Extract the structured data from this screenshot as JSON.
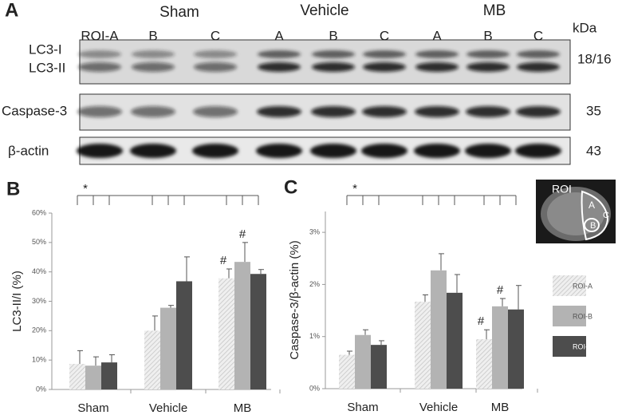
{
  "panel_labels": [
    "A",
    "B",
    "C"
  ],
  "blot": {
    "groups": [
      "Sham",
      "Vehicle",
      "MB"
    ],
    "lanes": [
      "ROI-A",
      "B",
      "C",
      "A",
      "B",
      "C",
      "A",
      "B",
      "C"
    ],
    "kda_header": "kDa",
    "rows": [
      {
        "labels": [
          "LC3-I",
          "LC3-II"
        ],
        "kda": "18/16"
      },
      {
        "labels": [
          "Caspase-3"
        ],
        "kda": "35"
      },
      {
        "labels": [
          "β-actin"
        ],
        "kda": "43"
      }
    ]
  },
  "roi_inset": {
    "label": "ROI",
    "regions": [
      "A",
      "B",
      "C"
    ]
  },
  "chart_data": [
    {
      "type": "bar",
      "y_label": "LC3-II/I (%)",
      "categories": [
        "Sham",
        "Vehicle",
        "MB"
      ],
      "series": [
        {
          "name": "ROI-A",
          "color": "#e8e8e8",
          "hatch": true,
          "values": [
            8.7,
            20,
            37.8
          ],
          "errors": [
            4.5,
            5,
            3.2
          ]
        },
        {
          "name": "ROI-B",
          "color": "#b3b3b3",
          "values": [
            8.1,
            27.8,
            43.4
          ],
          "errors": [
            3,
            0.8,
            6.6
          ]
        },
        {
          "name": "ROI-C",
          "color": "#4d4d4d",
          "values": [
            9.2,
            36.8,
            39.3
          ],
          "errors": [
            2.6,
            8.3,
            1.5
          ]
        }
      ],
      "ylim": [
        0,
        60
      ],
      "yticks": [
        {
          "value": 0,
          "label": "0%"
        },
        {
          "value": 10,
          "label": "10%"
        },
        {
          "value": 20,
          "label": "20%"
        },
        {
          "value": 30,
          "label": "30%"
        },
        {
          "value": 40,
          "label": "40%"
        },
        {
          "value": 50,
          "label": "50%"
        },
        {
          "value": 60,
          "label": "60%"
        }
      ],
      "annotations": [
        "*",
        "#",
        "#"
      ],
      "legend": false
    },
    {
      "type": "bar",
      "y_label": "Caspase-3/β-actin (%)",
      "categories": [
        "Sham",
        "Vehicle",
        "MB"
      ],
      "series": [
        {
          "name": "ROI-A",
          "color": "#e8e8e8",
          "hatch": true,
          "values": [
            0.65,
            1.67,
            0.95
          ],
          "errors": [
            0.07,
            0.13,
            0.18
          ]
        },
        {
          "name": "ROI-B",
          "color": "#b3b3b3",
          "values": [
            1.03,
            2.27,
            1.58
          ],
          "errors": [
            0.1,
            0.32,
            0.15
          ]
        },
        {
          "name": "ROI-C",
          "color": "#4d4d4d",
          "values": [
            0.84,
            1.84,
            1.52
          ],
          "errors": [
            0.08,
            0.35,
            0.46
          ]
        }
      ],
      "ylim": [
        0,
        3.4
      ],
      "yticks": [
        {
          "value": 0,
          "label": "0%"
        },
        {
          "value": 1,
          "label": "1%"
        },
        {
          "value": 2,
          "label": "2%"
        },
        {
          "value": 3,
          "label": "3%"
        }
      ],
      "annotations": [
        "*",
        "#",
        "#"
      ],
      "legend": true
    }
  ]
}
